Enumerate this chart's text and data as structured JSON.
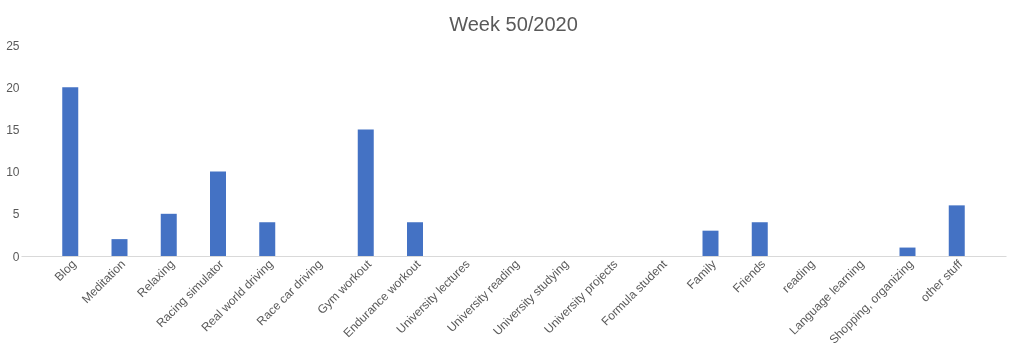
{
  "chart_data": {
    "type": "bar",
    "title": "Week 50/2020",
    "categories": [
      "Blog",
      "Meditation",
      "Relaxing",
      "Racing simulator",
      "Real world driving",
      "Race car driving",
      "Gym workout",
      "Endurance workout",
      "University lectures",
      "University reading",
      "University studying",
      "University projects",
      "Formula student",
      "Family",
      "Friends",
      "reading",
      "Language learning",
      "Shopping, organizing",
      "other stuff"
    ],
    "values": [
      20,
      2,
      5,
      10,
      4,
      0,
      15,
      4,
      0,
      0,
      0,
      0,
      0,
      3,
      4,
      0,
      0,
      1,
      6
    ],
    "color": "#4472c4",
    "ylim": [
      0,
      25
    ],
    "yticks": [
      0,
      5,
      10,
      15,
      20,
      25
    ],
    "grid": false
  }
}
